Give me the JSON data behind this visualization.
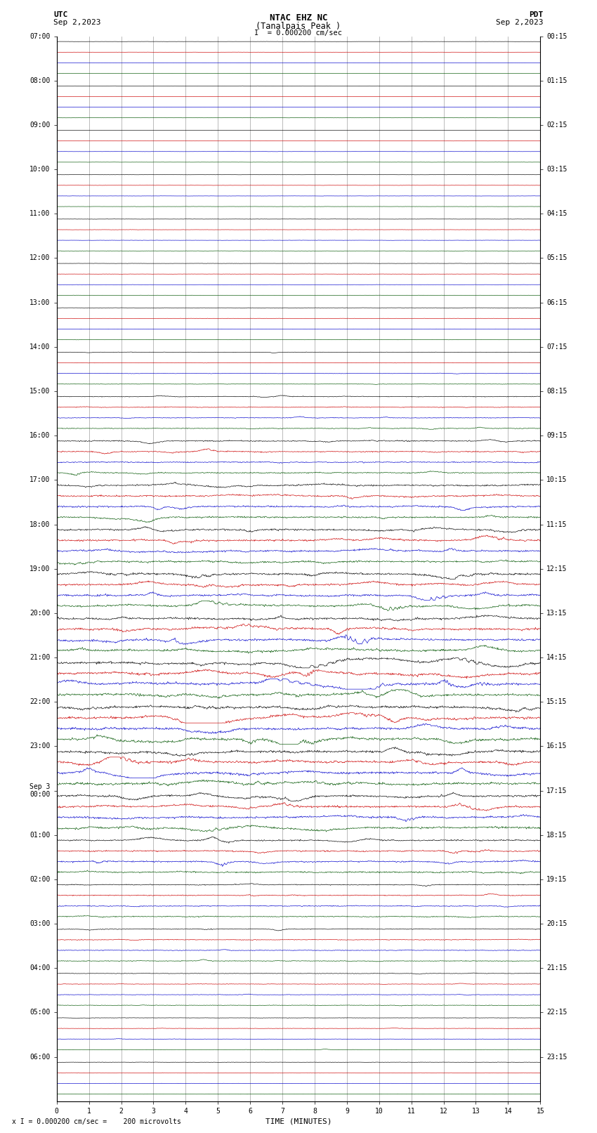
{
  "title_line1": "NTAC EHZ NC",
  "title_line2": "(Tanalpais Peak )",
  "title_line3": "I  = 0.000200 cm/sec",
  "xlabel": "TIME (MINUTES)",
  "footer": "x I = 0.000200 cm/sec =    200 microvolts",
  "x_min": 0,
  "x_max": 15,
  "bg_color": "#ffffff",
  "grid_color": "#777777",
  "trace_colors": [
    "#000000",
    "#cc0000",
    "#0000cc",
    "#005500"
  ],
  "left_times": [
    "07:00",
    "08:00",
    "09:00",
    "10:00",
    "11:00",
    "12:00",
    "13:00",
    "14:00",
    "15:00",
    "16:00",
    "17:00",
    "18:00",
    "19:00",
    "20:00",
    "21:00",
    "22:00",
    "23:00",
    "Sep 3\n00:00",
    "01:00",
    "02:00",
    "03:00",
    "04:00",
    "05:00",
    "06:00"
  ],
  "right_times": [
    "00:15",
    "01:15",
    "02:15",
    "03:15",
    "04:15",
    "05:15",
    "06:15",
    "07:15",
    "08:15",
    "09:15",
    "10:15",
    "11:15",
    "12:15",
    "13:15",
    "14:15",
    "15:15",
    "16:15",
    "17:15",
    "18:15",
    "19:15",
    "20:15",
    "21:15",
    "22:15",
    "23:15"
  ],
  "n_hours": 24,
  "traces_per_hour": 4,
  "activity_by_hour": [
    0.08,
    0.08,
    0.08,
    0.1,
    0.12,
    0.12,
    0.15,
    0.2,
    0.35,
    0.55,
    0.8,
    0.9,
    1.0,
    1.1,
    1.2,
    1.25,
    1.2,
    1.0,
    0.7,
    0.45,
    0.35,
    0.25,
    0.18,
    0.15
  ]
}
